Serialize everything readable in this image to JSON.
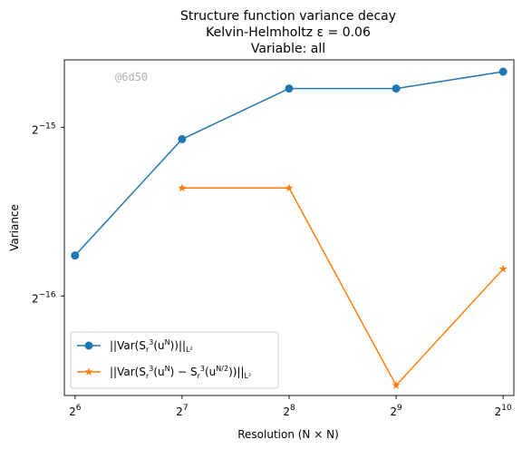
{
  "chart_data": {
    "type": "line",
    "title": [
      "Structure function variance decay",
      "Kelvin-Helmholtz ε = 0.06",
      "Variable: all"
    ],
    "xlabel": "Resolution (N × N)",
    "ylabel": "Variance",
    "x_scale": "log2",
    "y_scale": "log2",
    "x_ticks": [
      {
        "base": "2",
        "exp": "6",
        "value": 64
      },
      {
        "base": "2",
        "exp": "7",
        "value": 128
      },
      {
        "base": "2",
        "exp": "8",
        "value": 256
      },
      {
        "base": "2",
        "exp": "9",
        "value": 512
      },
      {
        "base": "2",
        "exp": "10",
        "value": 1024
      }
    ],
    "y_ticks": [
      {
        "base": "2",
        "exp": "−15",
        "exp_value": -15
      },
      {
        "base": "2",
        "exp": "−16",
        "exp_value": -16
      }
    ],
    "xlim_exp": [
      5.9,
      10.1
    ],
    "ylim_exp": [
      -16.59,
      -14.6
    ],
    "series": [
      {
        "name": "||Var(S_r^3(u^N))||_{L^2}",
        "legend_main": "||Var(S",
        "legend_sub1": "r",
        "legend_sup1": "3",
        "legend_mid": "(u",
        "legend_sup2": "N",
        "legend_end": "))||",
        "legend_sub_end": "L²",
        "color": "#1f77b4",
        "marker": "circle",
        "x": [
          64,
          128,
          256,
          512,
          1024
        ],
        "y_exp": [
          -15.76,
          -15.07,
          -14.77,
          -14.77,
          -14.67
        ]
      },
      {
        "name": "||Var(S_r^3(u^N) − S_r^3(u^{N/2}))||_{L^2}",
        "legend_main": "||Var(S",
        "legend_sub1": "r",
        "legend_sup1": "3",
        "legend_mid": "(u",
        "legend_sup2": "N",
        "legend_mid2": ") − S",
        "legend_sub3": "r",
        "legend_sup3": "3",
        "legend_mid3": "(u",
        "legend_sup4": "N/2",
        "legend_end": "))||",
        "legend_sub_end": "L²",
        "color": "#ff7f0e",
        "marker": "star",
        "x": [
          128,
          256,
          512,
          1024
        ],
        "y_exp": [
          -15.36,
          -15.36,
          -16.53,
          -15.84
        ]
      }
    ],
    "legend_position": "lower-left",
    "grid": false
  },
  "watermark": "@6d50"
}
